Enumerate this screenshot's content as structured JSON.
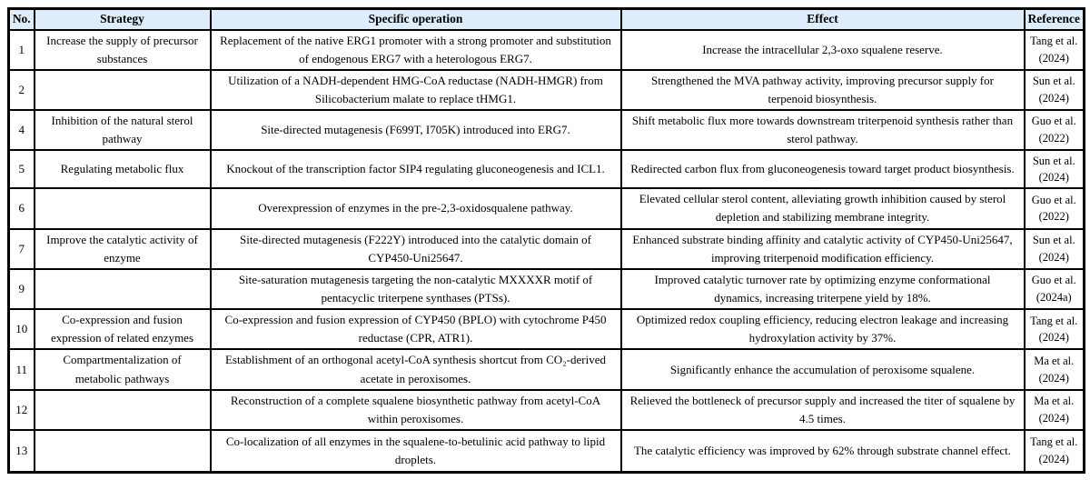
{
  "table": {
    "style": {
      "header_bg": "#ddedfb",
      "border_color": "#000000",
      "text_color": "#000000"
    },
    "columns": [
      {
        "label": "No."
      },
      {
        "label": "Strategy"
      },
      {
        "label": "Specific operation"
      },
      {
        "label": "Effect"
      },
      {
        "label": "Reference"
      }
    ],
    "rows": [
      {
        "no": "1",
        "strategy": "Increase the supply of precursor substances",
        "operation": "Replacement of the native ERG1 promoter with a strong promoter and substitution of endogenous ERG7 with a heterologous ERG7.",
        "effect": "Increase the intracellular 2,3-oxo squalene reserve.",
        "reference": "Tang et al. (2024)"
      },
      {
        "no": "2",
        "strategy": "",
        "operation": "Utilization of a NADH-dependent HMG-CoA reductase (NADH-HMGR) from Silicobacterium malate to replace tHMG1.",
        "effect": "Strengthened the MVA pathway activity, improving precursor supply for terpenoid biosynthesis.",
        "reference": "Sun et al. (2024)"
      },
      {
        "no": "4",
        "strategy": "Inhibition of the natural sterol pathway",
        "operation": "Site-directed mutagenesis (F699T, I705K) introduced into ERG7.",
        "effect": "Shift metabolic flux more towards downstream triterpenoid synthesis rather than sterol pathway.",
        "reference": "Guo et al. (2022)"
      },
      {
        "no": "5",
        "strategy": "Regulating metabolic flux",
        "operation": "Knockout of the transcription factor SIP4 regulating gluconeogenesis and ICL1.",
        "effect": "Redirected carbon flux from gluconeogenesis toward target product biosynthesis.",
        "reference": "Sun et al. (2024)"
      },
      {
        "no": "6",
        "strategy": "",
        "operation": "Overexpression of enzymes in the pre-2,3-oxidosqualene pathway.",
        "effect": "Elevated cellular sterol content, alleviating growth inhibition caused by sterol depletion and stabilizing membrane integrity.",
        "reference": "Guo et al. (2022)"
      },
      {
        "no": "7",
        "strategy": "Improve the catalytic activity of enzyme",
        "operation": "Site-directed mutagenesis (F222Y) introduced into the catalytic domain of CYP450-Uni25647.",
        "effect": "Enhanced substrate binding affinity and catalytic activity of CYP450-Uni25647, improving triterpenoid modification efficiency.",
        "reference": "Sun et al. (2024)"
      },
      {
        "no": "9",
        "strategy": "",
        "operation": "Site-saturation mutagenesis targeting the non-catalytic MXXXXR motif of pentacyclic triterpene synthases (PTSs).",
        "effect": "Improved catalytic turnover rate by optimizing enzyme conformational dynamics, increasing triterpene yield by 18%.",
        "reference": "Guo et al. (2024a)"
      },
      {
        "no": "10",
        "strategy": "Co-expression and fusion expression of related enzymes",
        "operation": "Co-expression and fusion expression of CYP450 (BPLO) with cytochrome P450 reductase (CPR, ATR1).",
        "effect": "Optimized redox coupling efficiency, reducing electron leakage and increasing hydroxylation activity by 37%.",
        "reference": "Tang et al. (2024)"
      },
      {
        "no": "11",
        "strategy": "Compartmentalization of metabolic pathways",
        "operation": "Establishment of an orthogonal acetyl-CoA synthesis shortcut from CO₂-derived acetate in peroxisomes.",
        "effect": "Significantly enhance the accumulation of peroxisome squalene.",
        "reference": "Ma et al. (2024)"
      },
      {
        "no": "12",
        "strategy": "",
        "operation": "Reconstruction of a complete squalene biosynthetic pathway from acetyl-CoA within peroxisomes.",
        "effect": "Relieved the bottleneck of precursor supply and increased the titer of squalene by 4.5 times.",
        "reference": "Ma et al. (2024)"
      },
      {
        "no": "13",
        "strategy": "",
        "operation": "Co-localization of all enzymes in the squalene-to-betulinic acid pathway to lipid droplets.",
        "effect": "The catalytic efficiency was improved by 62% through substrate channel effect.",
        "reference": "Tang et al. (2024)"
      }
    ]
  }
}
